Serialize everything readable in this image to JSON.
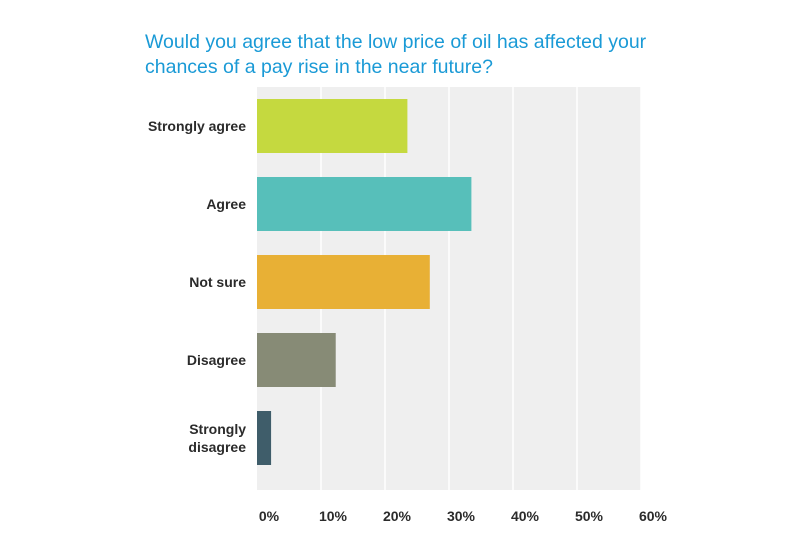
{
  "chart_data": {
    "type": "bar",
    "orientation": "horizontal",
    "title": "Would you agree that the low price of oil has affected your chances of a pay rise in the near future?",
    "categories": [
      [
        "Strongly agree"
      ],
      [
        "Agree"
      ],
      [
        "Not sure"
      ],
      [
        "Disagree"
      ],
      [
        "Strongly",
        "disagree"
      ]
    ],
    "values": [
      23.5,
      33.5,
      27,
      12.3,
      2.2
    ],
    "colors": [
      "#c5d93f",
      "#57bfba",
      "#e8b035",
      "#878b76",
      "#3f5d6a"
    ],
    "xlim": [
      0,
      60
    ],
    "x_ticks": [
      "0%",
      "10%",
      "20%",
      "30%",
      "40%",
      "50%",
      "60%"
    ],
    "grid": true,
    "background_color": "#efefef",
    "grid_color": "#ffffff"
  }
}
